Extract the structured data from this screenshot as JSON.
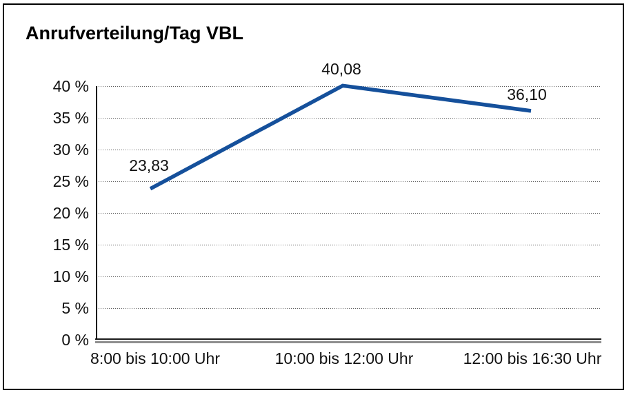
{
  "chart_data": {
    "type": "line",
    "title": "Anrufverteilung/Tag VBL",
    "categories": [
      "8:00 bis 10:00 Uhr",
      "10:00 bis 12:00 Uhr",
      "12:00 bis 16:30 Uhr"
    ],
    "values": [
      23.83,
      40.08,
      36.1
    ],
    "value_labels": [
      "23,83",
      "40,08",
      "36,10"
    ],
    "y_tick_labels": [
      "40 %",
      "35 %",
      "30 %",
      "25 %",
      "20 %",
      "15 %",
      "10 %",
      "5 %",
      "0 %"
    ],
    "xlabel": "",
    "ylabel": "",
    "ylim": [
      0,
      40
    ],
    "y_step": 5,
    "grid": "horizontal-dotted",
    "legend": "none",
    "line_color": "#15509b",
    "axis_color": "#000000",
    "background_color": "#ffffff"
  }
}
